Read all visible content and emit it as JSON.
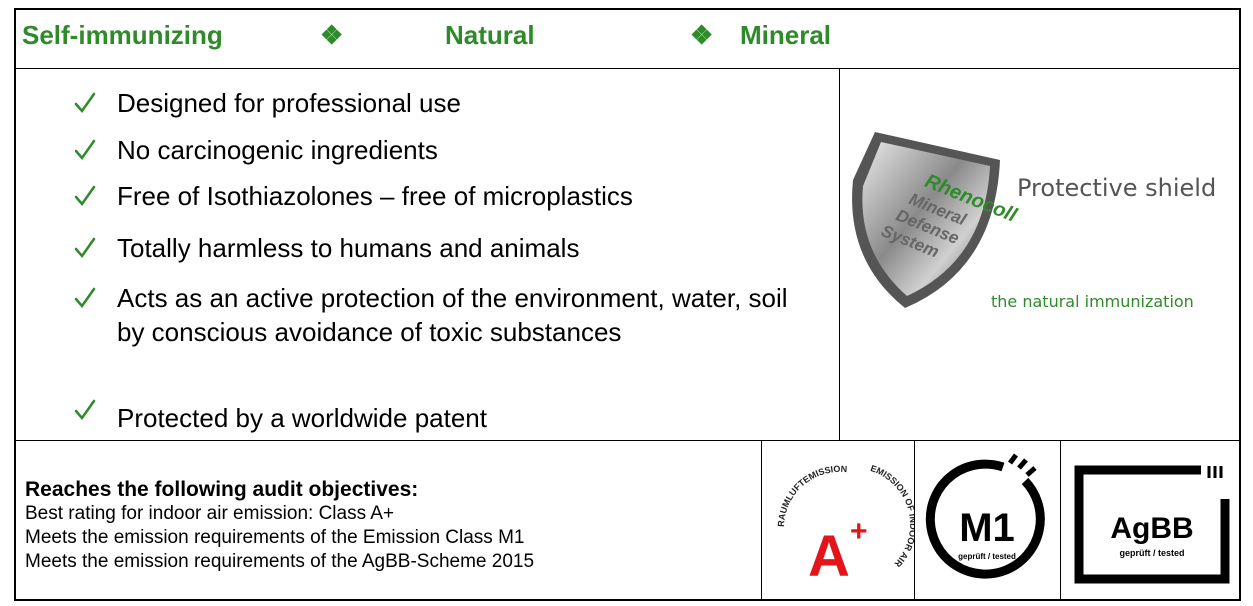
{
  "header": {
    "items": [
      "Self-immunizing",
      "❖",
      "Natural",
      "❖",
      "Mineral"
    ]
  },
  "features": [
    "Designed for professional use",
    "No carcinogenic ingredients",
    "Free of Isothiazolones – free of microplastics",
    "Totally harmless to humans and animals",
    "Acts as an active protection of the environment, water, soil by conscious avoidance of toxic substances",
    "Protected by a worldwide patent"
  ],
  "shield": {
    "brand": "Rhenocoll",
    "lines": [
      "Mineral",
      "Defense",
      "System"
    ],
    "caption": "Protective shield",
    "tagline": "the natural immunization"
  },
  "audit": {
    "title": "Reaches the following audit objectives:",
    "lines": [
      "Best rating for indoor air emission: Class  A+",
      "Meets the emission requirements of the Emission Class M1",
      "Meets the emission requirements of the AgBB-Scheme 2015"
    ]
  },
  "badges": [
    {
      "ring_top": "RAUMLUFTEMISSION",
      "ring_side": "EMISSION OF INDOOR AIR",
      "label": "A",
      "sup": "+"
    },
    {
      "label": "M1",
      "sub": "geprüft / tested"
    },
    {
      "label": "AgBB",
      "sub": "geprüft / tested"
    }
  ]
}
